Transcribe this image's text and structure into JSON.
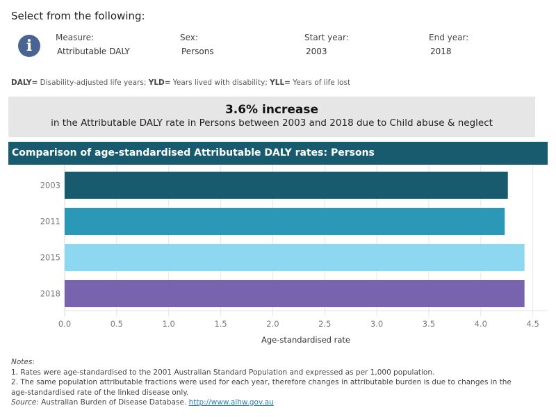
{
  "header": {
    "select_title": "Select from the following:",
    "info_icon": "info-icon"
  },
  "filters": {
    "measure": {
      "label": "Measure:",
      "value": "Attributable DALY"
    },
    "sex": {
      "label": "Sex:",
      "value": "Persons"
    },
    "start_year": {
      "label": "Start year:",
      "value": "2003"
    },
    "end_year": {
      "label": "End year:",
      "value": "2018"
    }
  },
  "abbreviations": [
    {
      "term": "DALY=",
      "definition": " Disability-adjusted life years; "
    },
    {
      "term": "YLD=",
      "definition": " Years lived with disability; "
    },
    {
      "term": "YLL=",
      "definition": " Years of life lost"
    }
  ],
  "summary": {
    "headline": "3.6% increase",
    "detail": "in the Attributable DALY rate in Persons between 2003 and 2018 due to Child abuse & neglect"
  },
  "chart_header": "Comparison of age-standardised Attributable DALY rates: Persons",
  "chart_data": {
    "type": "bar",
    "orientation": "horizontal",
    "title": "Comparison of age-standardised Attributable DALY rates: Persons",
    "categories": [
      "2003",
      "2011",
      "2015",
      "2018"
    ],
    "values": [
      4.26,
      4.23,
      4.42,
      4.42
    ],
    "colors": [
      "#185b6f",
      "#2b98b8",
      "#8dd8f0",
      "#7962ae"
    ],
    "xlabel": "Age-standardised rate",
    "ylabel": "",
    "xlim": [
      0,
      4.6
    ],
    "xticks": [
      "0.0",
      "0.5",
      "1.0",
      "1.5",
      "2.0",
      "2.5",
      "3.0",
      "3.5",
      "4.0",
      "4.5"
    ],
    "grid": true
  },
  "notes": {
    "heading": "Notes",
    "items": [
      "1. Rates were age-standardised to the 2001 Australian Standard Population and expressed as per 1,000 population.",
      "2. The same population attributable fractions were used for each year, therefore changes in attributable burden is due to changes in the",
      "age-standardised rate of the linked disease only."
    ],
    "source_label": "Source",
    "source_text": ": Australian Burden of Disease Database. ",
    "source_link": "http://www.aihw.gov.au"
  }
}
